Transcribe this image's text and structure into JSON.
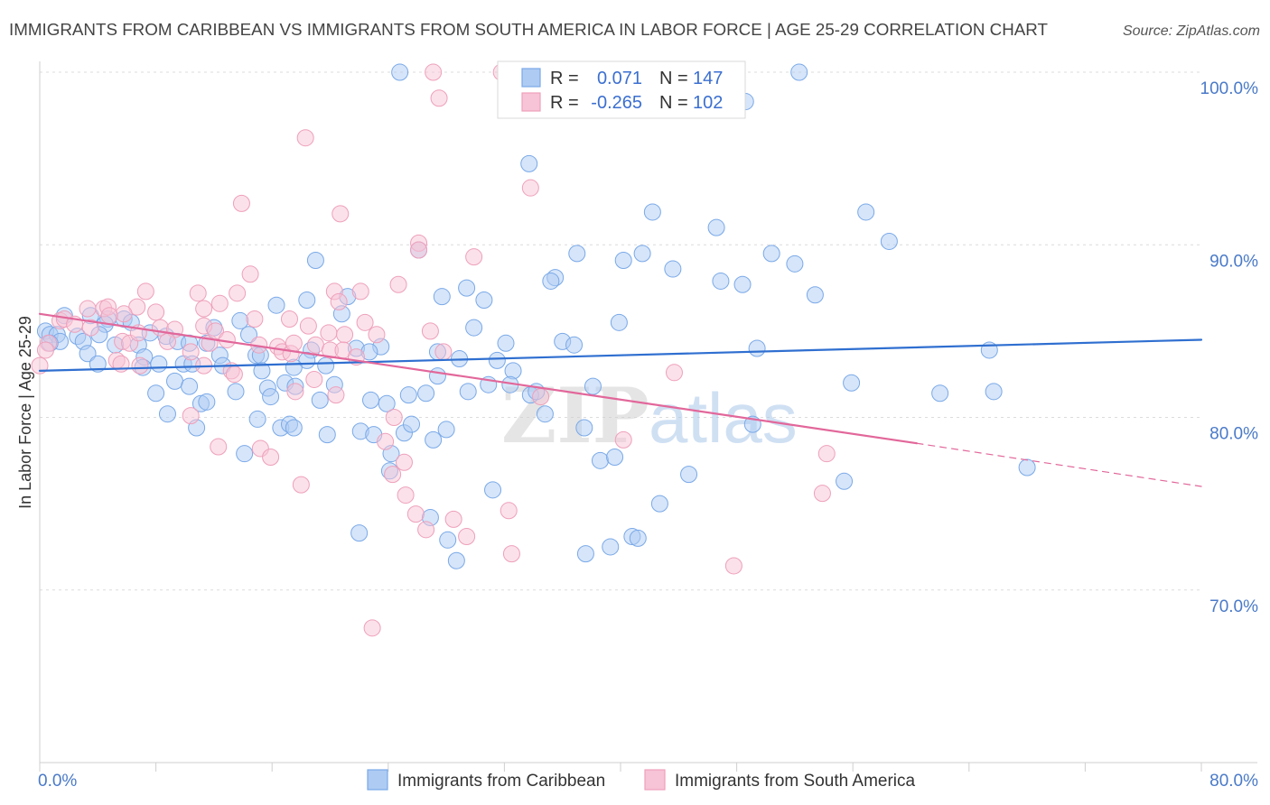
{
  "source": "Source: ZipAtlas.com",
  "watermark": {
    "zip": "ZIP",
    "atlas": "atlas"
  },
  "colors": {
    "blue_stroke": "#7aa9e8",
    "blue_fill": "#aecbf3",
    "blue_line": "#2f6fd0",
    "pink_stroke": "#eea0bb",
    "pink_fill": "#f7c3d6",
    "pink_line": "#e2679a",
    "value_text": "#3b6fd0",
    "tick_text": "#4a7ac8"
  },
  "chart_data": {
    "type": "scatter",
    "title": "IMMIGRANTS FROM CARIBBEAN VS IMMIGRANTS FROM SOUTH AMERICA IN LABOR FORCE | AGE 25-29 CORRELATION CHART",
    "xlabel": "",
    "ylabel": "In Labor Force | Age 25-29",
    "xlim": [
      0,
      80
    ],
    "ylim": [
      60,
      100.63
    ],
    "x_ticks": [
      0,
      8,
      16,
      24,
      32,
      40,
      48,
      56,
      64,
      72,
      80
    ],
    "x_tick_label_values": [
      0,
      80
    ],
    "x_tick_labels": [
      "0.0%",
      "80.0%"
    ],
    "y_ticks": [
      100,
      90,
      80,
      70
    ],
    "y_tick_labels": [
      "100.0%",
      "90.0%",
      "80.0%",
      "70.0%"
    ],
    "grid": true,
    "legend_position": "top-center",
    "stat_labels": {
      "r": "R =",
      "n": "N ="
    },
    "series": [
      {
        "name": "Immigrants from Caribbean",
        "r_value": "0.071",
        "n_value": "147",
        "stroke": "#7aa9e8",
        "fill": "#aecbf3",
        "line_color": "#2f6fd0",
        "trend": {
          "x": [
            0,
            80
          ],
          "y": [
            82.7,
            84.5
          ]
        },
        "points": [
          [
            24.8,
            100.0
          ],
          [
            52.3,
            100.0
          ],
          [
            48.6,
            98.3
          ],
          [
            33.7,
            94.7
          ],
          [
            42.2,
            91.9
          ],
          [
            56.9,
            91.9
          ],
          [
            46.6,
            91.0
          ],
          [
            58.5,
            90.2
          ],
          [
            26.1,
            89.7
          ],
          [
            37.0,
            89.5
          ],
          [
            41.5,
            89.5
          ],
          [
            50.4,
            89.5
          ],
          [
            40.2,
            89.1
          ],
          [
            52.0,
            88.9
          ],
          [
            19.0,
            89.1
          ],
          [
            43.6,
            88.6
          ],
          [
            35.5,
            88.1
          ],
          [
            35.2,
            87.9
          ],
          [
            46.9,
            87.9
          ],
          [
            48.4,
            87.7
          ],
          [
            29.4,
            87.5
          ],
          [
            53.4,
            87.1
          ],
          [
            27.7,
            87.0
          ],
          [
            18.4,
            86.8
          ],
          [
            30.6,
            86.8
          ],
          [
            16.3,
            86.5
          ],
          [
            21.2,
            87.0
          ],
          [
            20.8,
            86.0
          ],
          [
            1.7,
            85.9
          ],
          [
            3.5,
            85.9
          ],
          [
            4.7,
            85.7
          ],
          [
            5.8,
            85.7
          ],
          [
            6.3,
            85.5
          ],
          [
            4.5,
            85.4
          ],
          [
            13.8,
            85.6
          ],
          [
            12.0,
            85.2
          ],
          [
            29.9,
            85.2
          ],
          [
            39.9,
            85.5
          ],
          [
            0.4,
            85.0
          ],
          [
            0.7,
            84.8
          ],
          [
            1.2,
            84.8
          ],
          [
            1.4,
            84.4
          ],
          [
            2.6,
            84.7
          ],
          [
            4.1,
            84.8
          ],
          [
            7.6,
            84.9
          ],
          [
            8.7,
            84.7
          ],
          [
            9.5,
            84.4
          ],
          [
            11.5,
            84.3
          ],
          [
            14.4,
            84.8
          ],
          [
            14.9,
            83.6
          ],
          [
            0.7,
            84.3
          ],
          [
            3.0,
            84.4
          ],
          [
            5.2,
            84.2
          ],
          [
            6.8,
            84.2
          ],
          [
            10.3,
            84.3
          ],
          [
            32.1,
            84.3
          ],
          [
            36.0,
            84.4
          ],
          [
            36.8,
            84.2
          ],
          [
            23.5,
            84.1
          ],
          [
            21.8,
            84.0
          ],
          [
            18.7,
            83.9
          ],
          [
            18.4,
            83.3
          ],
          [
            3.3,
            83.7
          ],
          [
            4.0,
            83.1
          ],
          [
            7.2,
            83.5
          ],
          [
            8.2,
            83.1
          ],
          [
            9.9,
            83.1
          ],
          [
            10.5,
            83.1
          ],
          [
            12.4,
            83.6
          ],
          [
            12.6,
            83.0
          ],
          [
            15.2,
            83.6
          ],
          [
            22.7,
            83.8
          ],
          [
            31.5,
            83.3
          ],
          [
            27.4,
            83.8
          ],
          [
            28.9,
            83.4
          ],
          [
            49.4,
            84.0
          ],
          [
            65.4,
            83.9
          ],
          [
            32.6,
            82.7
          ],
          [
            15.3,
            82.7
          ],
          [
            7.1,
            82.9
          ],
          [
            17.5,
            82.9
          ],
          [
            19.7,
            83.0
          ],
          [
            27.4,
            82.4
          ],
          [
            9.3,
            82.1
          ],
          [
            16.9,
            82.0
          ],
          [
            8.0,
            81.4
          ],
          [
            10.3,
            81.8
          ],
          [
            11.1,
            80.8
          ],
          [
            11.5,
            80.9
          ],
          [
            13.5,
            81.5
          ],
          [
            15.7,
            81.7
          ],
          [
            15.9,
            81.2
          ],
          [
            17.6,
            81.8
          ],
          [
            19.3,
            81.0
          ],
          [
            20.3,
            81.9
          ],
          [
            22.8,
            81.0
          ],
          [
            23.9,
            80.8
          ],
          [
            25.4,
            81.3
          ],
          [
            26.6,
            81.4
          ],
          [
            29.5,
            81.5
          ],
          [
            30.9,
            81.9
          ],
          [
            32.4,
            81.9
          ],
          [
            33.8,
            81.3
          ],
          [
            34.2,
            81.5
          ],
          [
            38.1,
            81.8
          ],
          [
            55.9,
            82.0
          ],
          [
            62.0,
            81.4
          ],
          [
            65.7,
            81.5
          ],
          [
            8.8,
            80.2
          ],
          [
            10.8,
            79.4
          ],
          [
            15.0,
            79.9
          ],
          [
            16.6,
            79.4
          ],
          [
            17.2,
            79.6
          ],
          [
            17.5,
            79.4
          ],
          [
            19.8,
            79.0
          ],
          [
            22.1,
            79.2
          ],
          [
            23.0,
            79.0
          ],
          [
            25.1,
            79.1
          ],
          [
            25.6,
            79.6
          ],
          [
            28.0,
            79.3
          ],
          [
            27.1,
            78.7
          ],
          [
            34.8,
            80.2
          ],
          [
            37.5,
            79.4
          ],
          [
            49.1,
            79.6
          ],
          [
            14.1,
            77.9
          ],
          [
            24.2,
            77.9
          ],
          [
            24.1,
            76.9
          ],
          [
            38.6,
            77.5
          ],
          [
            39.6,
            77.7
          ],
          [
            44.7,
            76.7
          ],
          [
            55.4,
            76.3
          ],
          [
            68.0,
            77.1
          ],
          [
            31.2,
            75.8
          ],
          [
            42.7,
            75.0
          ],
          [
            26.9,
            74.2
          ],
          [
            22.0,
            73.3
          ],
          [
            28.1,
            72.9
          ],
          [
            40.8,
            73.1
          ],
          [
            41.2,
            73.0
          ],
          [
            39.3,
            72.5
          ],
          [
            37.6,
            72.1
          ],
          [
            28.7,
            71.7
          ]
        ]
      },
      {
        "name": "Immigrants from South America",
        "r_value": "-0.265",
        "n_value": "102",
        "stroke": "#eea0bb",
        "fill": "#f7c3d6",
        "line_color": "#e2679a",
        "trend": {
          "x": [
            0,
            60.4,
            80
          ],
          "y": [
            86.0,
            78.5,
            76.0
          ],
          "dashed_after": 60.4
        },
        "points": [
          [
            27.1,
            100.0
          ],
          [
            31.8,
            100.0
          ],
          [
            27.5,
            98.5
          ],
          [
            18.3,
            96.2
          ],
          [
            33.8,
            93.3
          ],
          [
            13.9,
            92.4
          ],
          [
            20.7,
            91.8
          ],
          [
            26.1,
            90.1
          ],
          [
            26.1,
            89.7
          ],
          [
            29.9,
            89.3
          ],
          [
            14.5,
            88.3
          ],
          [
            24.7,
            87.7
          ],
          [
            7.3,
            87.3
          ],
          [
            10.9,
            87.2
          ],
          [
            13.6,
            87.2
          ],
          [
            20.3,
            87.3
          ],
          [
            22.1,
            87.3
          ],
          [
            12.4,
            86.6
          ],
          [
            20.6,
            86.7
          ],
          [
            6.7,
            86.4
          ],
          [
            8.0,
            86.1
          ],
          [
            11.3,
            86.3
          ],
          [
            3.3,
            86.3
          ],
          [
            4.4,
            86.3
          ],
          [
            4.7,
            86.4
          ],
          [
            5.8,
            86.0
          ],
          [
            1.4,
            85.6
          ],
          [
            1.7,
            85.7
          ],
          [
            2.4,
            85.4
          ],
          [
            3.5,
            85.2
          ],
          [
            4.8,
            85.9
          ],
          [
            8.3,
            85.2
          ],
          [
            9.3,
            85.1
          ],
          [
            11.3,
            85.3
          ],
          [
            14.8,
            85.7
          ],
          [
            17.2,
            85.7
          ],
          [
            18.5,
            85.3
          ],
          [
            19.9,
            84.9
          ],
          [
            22.4,
            85.5
          ],
          [
            21.0,
            84.8
          ],
          [
            26.9,
            85.0
          ],
          [
            23.2,
            84.8
          ],
          [
            0.6,
            84.3
          ],
          [
            0.4,
            83.9
          ],
          [
            0.0,
            83.0
          ],
          [
            5.7,
            84.4
          ],
          [
            6.2,
            84.3
          ],
          [
            6.8,
            84.9
          ],
          [
            8.8,
            84.4
          ],
          [
            11.7,
            84.3
          ],
          [
            12.1,
            85.0
          ],
          [
            12.9,
            84.5
          ],
          [
            15.1,
            84.2
          ],
          [
            16.4,
            84.1
          ],
          [
            16.7,
            83.8
          ],
          [
            17.3,
            83.7
          ],
          [
            17.5,
            84.3
          ],
          [
            19.0,
            84.2
          ],
          [
            20.0,
            83.9
          ],
          [
            20.9,
            83.9
          ],
          [
            21.8,
            83.5
          ],
          [
            5.3,
            83.3
          ],
          [
            5.6,
            83.1
          ],
          [
            6.9,
            83.0
          ],
          [
            10.4,
            83.8
          ],
          [
            11.3,
            83.0
          ],
          [
            13.2,
            82.7
          ],
          [
            13.4,
            82.5
          ],
          [
            27.8,
            83.8
          ],
          [
            18.9,
            82.2
          ],
          [
            20.4,
            81.3
          ],
          [
            17.6,
            81.5
          ],
          [
            34.5,
            81.2
          ],
          [
            43.7,
            82.6
          ],
          [
            10.4,
            80.1
          ],
          [
            12.3,
            78.3
          ],
          [
            15.2,
            78.2
          ],
          [
            15.9,
            77.7
          ],
          [
            24.4,
            80.0
          ],
          [
            23.8,
            78.6
          ],
          [
            25.1,
            77.4
          ],
          [
            24.3,
            76.7
          ],
          [
            40.2,
            78.7
          ],
          [
            54.2,
            77.9
          ],
          [
            18.0,
            76.1
          ],
          [
            25.2,
            75.5
          ],
          [
            25.9,
            74.4
          ],
          [
            28.5,
            74.1
          ],
          [
            26.6,
            73.5
          ],
          [
            29.4,
            73.1
          ],
          [
            32.3,
            74.6
          ],
          [
            53.9,
            75.6
          ],
          [
            32.5,
            72.1
          ],
          [
            47.8,
            71.4
          ],
          [
            22.9,
            67.8
          ]
        ]
      }
    ]
  }
}
